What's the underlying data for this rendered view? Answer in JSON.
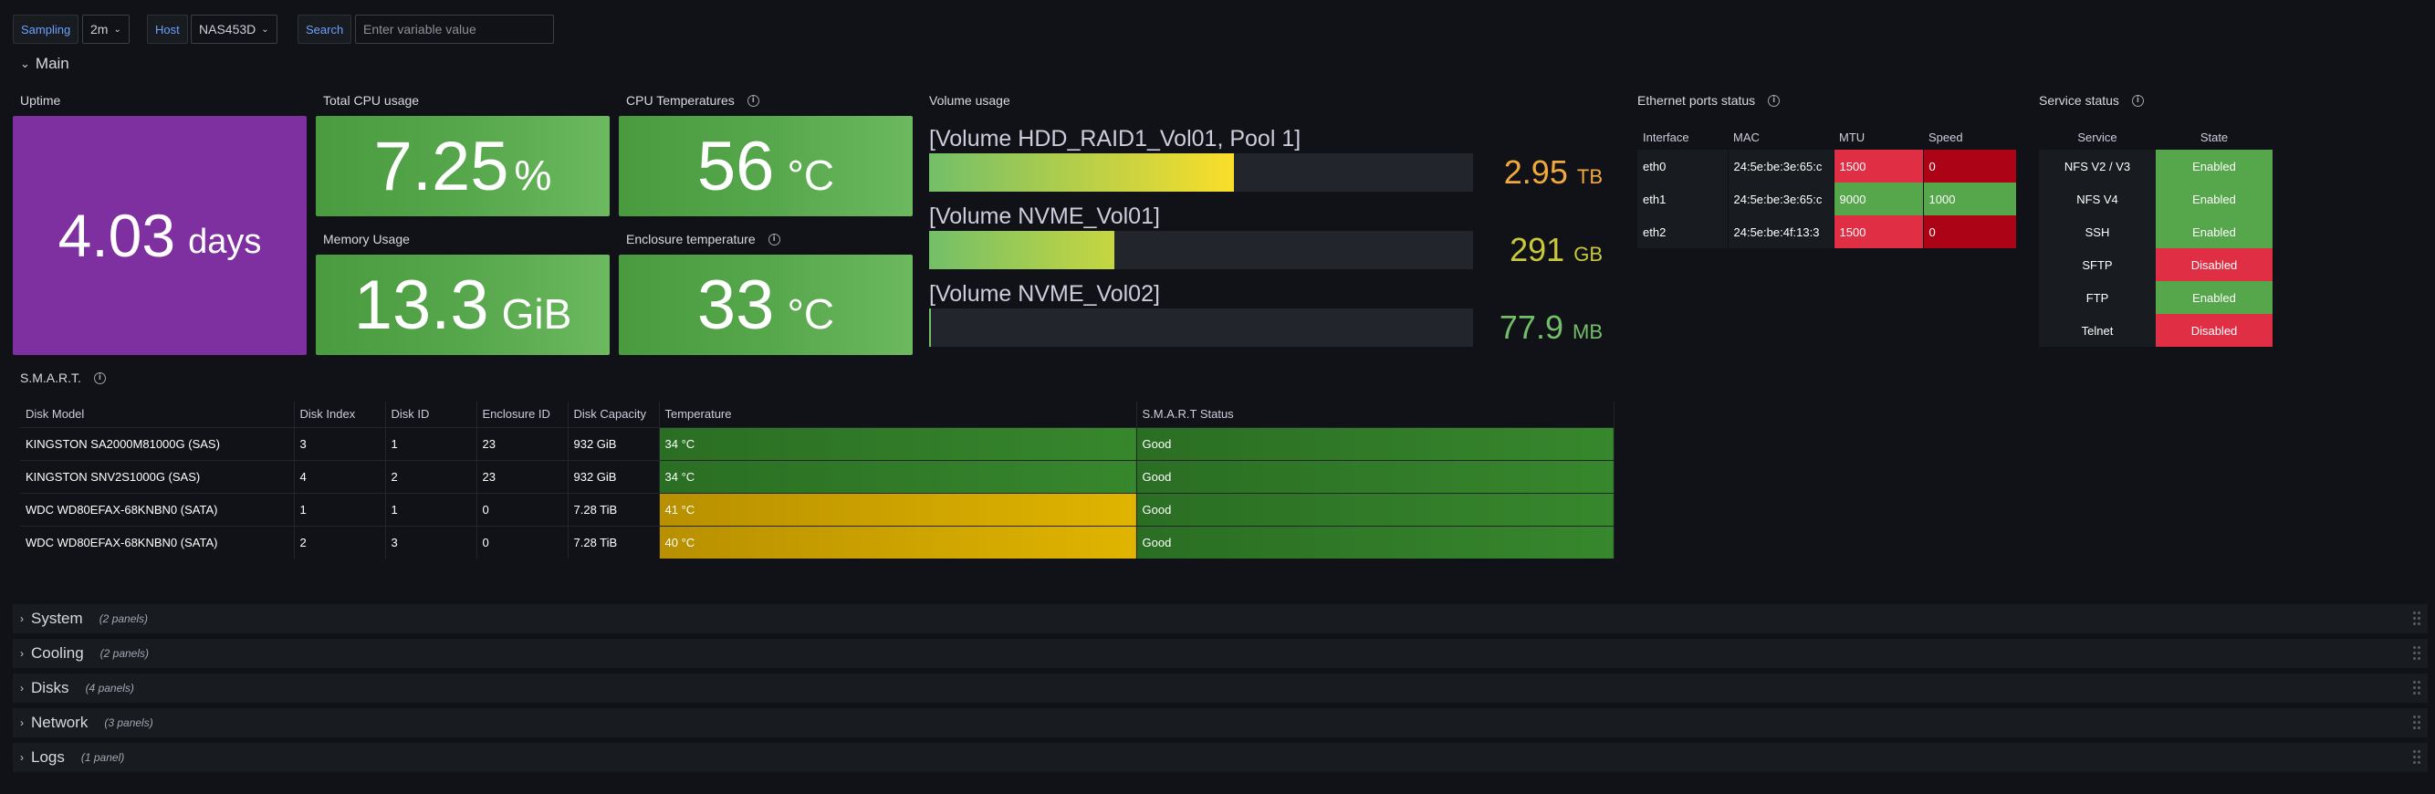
{
  "variables": {
    "sampling_label": "Sampling",
    "sampling_value": "2m",
    "host_label": "Host",
    "host_value": "NAS453D",
    "search_label": "Search",
    "search_placeholder": "Enter variable value"
  },
  "main_row": {
    "title": "Main"
  },
  "uptime": {
    "title": "Uptime",
    "value": "4.03",
    "unit": "days",
    "color": "#7e2fa0"
  },
  "cpu_usage": {
    "title": "Total CPU usage",
    "value": "7.25",
    "unit": "%",
    "color": "#56a64b"
  },
  "cpu_temp": {
    "title": "CPU Temperatures",
    "value": "56",
    "unit": "°C",
    "color": "#56a64b"
  },
  "memory": {
    "title": "Memory Usage",
    "value": "13.3",
    "unit": "GiB",
    "color": "#56a64b"
  },
  "enclosure_temp": {
    "title": "Enclosure temperature",
    "value": "33",
    "unit": "°C",
    "color": "#56a64b"
  },
  "volume_usage": {
    "title": "Volume usage",
    "volumes": [
      {
        "name": "[Volume HDD_RAID1_Vol01, Pool 1]",
        "value": "2.95",
        "unit": "TB",
        "fill_fraction": 0.56,
        "value_color": "#f2a93b"
      },
      {
        "name": "[Volume NVME_Vol01]",
        "value": "291",
        "unit": "GB",
        "fill_fraction": 0.34,
        "value_color": "#c7c83a"
      },
      {
        "name": "[Volume NVME_Vol02]",
        "value": "77.9",
        "unit": "MB",
        "fill_fraction": 0.004,
        "value_color": "#73bf69"
      }
    ]
  },
  "ethernet": {
    "title": "Ethernet ports status",
    "headers": [
      "Interface",
      "MAC",
      "MTU",
      "Speed"
    ],
    "rows": [
      {
        "iface": "eth0",
        "mac": "24:5e:be:3e:65:c",
        "mtu": "1500",
        "speed": "0",
        "mtu_status": "bad",
        "speed_status": "bad"
      },
      {
        "iface": "eth1",
        "mac": "24:5e:be:3e:65:c",
        "mtu": "9000",
        "speed": "1000",
        "mtu_status": "good",
        "speed_status": "good"
      },
      {
        "iface": "eth2",
        "mac": "24:5e:be:4f:13:3",
        "mtu": "1500",
        "speed": "0",
        "mtu_status": "bad",
        "speed_status": "bad"
      }
    ]
  },
  "services": {
    "title": "Service status",
    "headers": [
      "Service",
      "State"
    ],
    "rows": [
      {
        "service": "NFS V2 / V3",
        "state": "Enabled"
      },
      {
        "service": "NFS V4",
        "state": "Enabled"
      },
      {
        "service": "SSH",
        "state": "Enabled"
      },
      {
        "service": "SFTP",
        "state": "Disabled"
      },
      {
        "service": "FTP",
        "state": "Enabled"
      },
      {
        "service": "Telnet",
        "state": "Disabled"
      }
    ]
  },
  "smart": {
    "title": "S.M.A.R.T.",
    "headers": [
      "Disk Model",
      "Disk Index",
      "Disk ID",
      "Enclosure ID",
      "Disk Capacity",
      "Temperature",
      "S.M.A.R.T Status"
    ],
    "rows": [
      {
        "model": "KINGSTON SA2000M81000G (SAS)",
        "index": "3",
        "id": "1",
        "enclosure": "23",
        "capacity": "932 GiB",
        "temp": "34 °C",
        "temp_level": "good",
        "status": "Good"
      },
      {
        "model": "KINGSTON SNV2S1000G (SAS)",
        "index": "4",
        "id": "2",
        "enclosure": "23",
        "capacity": "932 GiB",
        "temp": "34 °C",
        "temp_level": "good",
        "status": "Good"
      },
      {
        "model": "WDC WD80EFAX-68KNBN0 (SATA)",
        "index": "1",
        "id": "1",
        "enclosure": "0",
        "capacity": "7.28 TiB",
        "temp": "41 °C",
        "temp_level": "warn",
        "status": "Good"
      },
      {
        "model": "WDC WD80EFAX-68KNBN0 (SATA)",
        "index": "2",
        "id": "3",
        "enclosure": "0",
        "capacity": "7.28 TiB",
        "temp": "40 °C",
        "temp_level": "warn",
        "status": "Good"
      }
    ]
  },
  "collapsed_rows": [
    {
      "title": "System",
      "count": "(2 panels)"
    },
    {
      "title": "Cooling",
      "count": "(2 panels)"
    },
    {
      "title": "Disks",
      "count": "(4 panels)"
    },
    {
      "title": "Network",
      "count": "(3 panels)"
    },
    {
      "title": "Logs",
      "count": "(1 panel)"
    }
  ],
  "colors": {
    "green": "#56a64b",
    "red": "#e02f44",
    "dark_red": "#ad0317",
    "warn": "#e0b400",
    "good_dark": "#37872d"
  }
}
